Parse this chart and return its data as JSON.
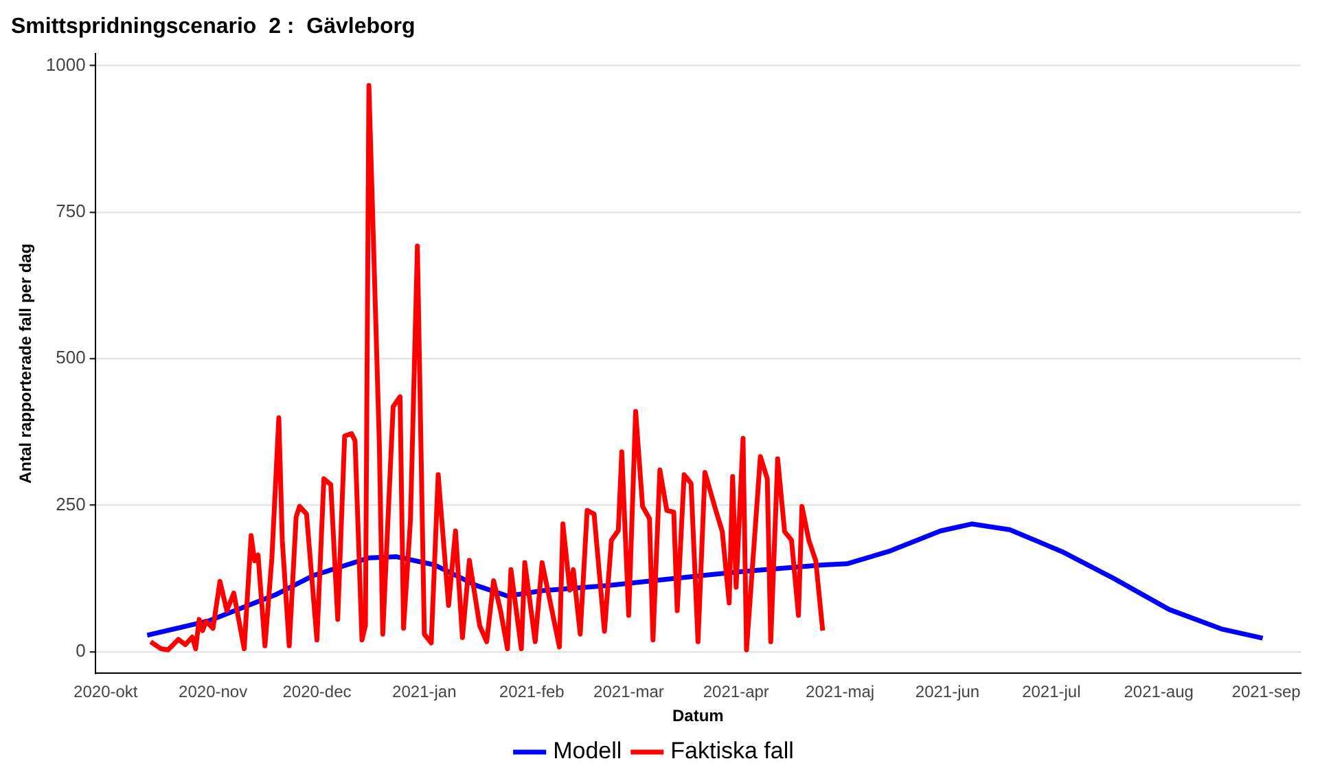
{
  "chart_data": {
    "type": "line",
    "title": "Smittspridningscenario  2 :  Gävleborg",
    "xlabel": "Datum",
    "ylabel": "Antal rapporterade fall per dag",
    "xlim": [
      "2020-09-28",
      "2021-09-11"
    ],
    "xticks": [
      {
        "value": "2020-10-01",
        "label": "2020-okt"
      },
      {
        "value": "2020-11-01",
        "label": "2020-nov"
      },
      {
        "value": "2020-12-01",
        "label": "2020-dec"
      },
      {
        "value": "2021-01-01",
        "label": "2021-jan"
      },
      {
        "value": "2021-02-01",
        "label": "2021-feb"
      },
      {
        "value": "2021-03-01",
        "label": "2021-mar"
      },
      {
        "value": "2021-04-01",
        "label": "2021-apr"
      },
      {
        "value": "2021-05-01",
        "label": "2021-maj"
      },
      {
        "value": "2021-06-01",
        "label": "2021-jun"
      },
      {
        "value": "2021-07-01",
        "label": "2021-jul"
      },
      {
        "value": "2021-08-01",
        "label": "2021-aug"
      },
      {
        "value": "2021-09-01",
        "label": "2021-sep"
      }
    ],
    "ylim": [
      -37,
      1020
    ],
    "yticks": [
      0,
      250,
      500,
      750,
      1000
    ],
    "grid": "y",
    "legend": "bottom",
    "marker": "none",
    "line_style": "solid",
    "series": [
      {
        "name": "Modell",
        "color": "#0000ff",
        "x": [
          "2020-10-13",
          "2020-10-31",
          "2020-11-19",
          "2020-11-30",
          "2020-12-16",
          "2020-12-24",
          "2021-01-04",
          "2021-01-16",
          "2021-01-25",
          "2021-02-04",
          "2021-02-23",
          "2021-03-14",
          "2021-04-03",
          "2021-04-26",
          "2021-05-03",
          "2021-05-15",
          "2021-05-30",
          "2021-06-08",
          "2021-06-19",
          "2021-07-04",
          "2021-07-19",
          "2021-08-04",
          "2021-08-19",
          "2021-08-31"
        ],
        "values": [
          28,
          53,
          97,
          130,
          160,
          162,
          148,
          113,
          95,
          104,
          113,
          125,
          137,
          148,
          150,
          171,
          206,
          218,
          208,
          171,
          125,
          72,
          39,
          23
        ]
      },
      {
        "name": "Faktiska fall",
        "color": "#ff0000",
        "x": [
          "2020-10-14",
          "2020-10-17",
          "2020-10-19",
          "2020-10-22",
          "2020-10-24",
          "2020-10-26",
          "2020-10-27",
          "2020-10-28",
          "2020-10-29",
          "2020-10-30",
          "2020-11-01",
          "2020-11-03",
          "2020-11-05",
          "2020-11-07",
          "2020-11-10",
          "2020-11-12",
          "2020-11-13",
          "2020-11-14",
          "2020-11-16",
          "2020-11-18",
          "2020-11-20",
          "2020-11-21",
          "2020-11-23",
          "2020-11-25",
          "2020-11-26",
          "2020-11-28",
          "2020-12-01",
          "2020-12-03",
          "2020-12-05",
          "2020-12-07",
          "2020-12-09",
          "2020-12-11",
          "2020-12-12",
          "2020-12-14",
          "2020-12-15",
          "2020-12-16",
          "2020-12-19",
          "2020-12-20",
          "2020-12-23",
          "2020-12-25",
          "2020-12-26",
          "2020-12-28",
          "2020-12-30",
          "2021-01-01",
          "2021-01-03",
          "2021-01-05",
          "2021-01-08",
          "2021-01-10",
          "2021-01-12",
          "2021-01-14",
          "2021-01-17",
          "2021-01-19",
          "2021-01-21",
          "2021-01-23",
          "2021-01-25",
          "2021-01-26",
          "2021-01-29",
          "2021-01-30",
          "2021-02-02",
          "2021-02-04",
          "2021-02-09",
          "2021-02-10",
          "2021-02-12",
          "2021-02-13",
          "2021-02-15",
          "2021-02-17",
          "2021-02-19",
          "2021-02-22",
          "2021-02-24",
          "2021-02-26",
          "2021-02-27",
          "2021-03-01",
          "2021-03-03",
          "2021-03-05",
          "2021-03-07",
          "2021-03-08",
          "2021-03-10",
          "2021-03-12",
          "2021-03-14",
          "2021-03-15",
          "2021-03-17",
          "2021-03-19",
          "2021-03-21",
          "2021-03-23",
          "2021-03-26",
          "2021-03-28",
          "2021-03-30",
          "2021-03-31",
          "2021-04-01",
          "2021-04-03",
          "2021-04-04",
          "2021-04-08",
          "2021-04-10",
          "2021-04-11",
          "2021-04-13",
          "2021-04-15",
          "2021-04-17",
          "2021-04-19",
          "2021-04-20",
          "2021-04-22",
          "2021-04-24",
          "2021-04-26"
        ],
        "values": [
          17,
          5,
          3,
          21,
          12,
          25,
          5,
          55,
          36,
          52,
          40,
          120,
          70,
          100,
          5,
          198,
          155,
          165,
          10,
          160,
          399,
          190,
          10,
          230,
          248,
          235,
          20,
          295,
          285,
          55,
          368,
          372,
          360,
          20,
          45,
          966,
          358,
          30,
          418,
          435,
          40,
          225,
          692,
          30,
          15,
          302,
          79,
          206,
          24,
          156,
          44,
          17,
          121,
          70,
          5,
          140,
          5,
          152,
          17,
          152,
          8,
          218,
          105,
          140,
          30,
          241,
          235,
          35,
          190,
          207,
          341,
          62,
          410,
          248,
          227,
          20,
          310,
          241,
          238,
          70,
          302,
          287,
          17,
          306,
          244,
          205,
          83,
          299,
          110,
          364,
          3,
          333,
          295,
          17,
          329,
          205,
          190,
          62,
          248,
          190,
          155,
          36
        ]
      }
    ]
  }
}
